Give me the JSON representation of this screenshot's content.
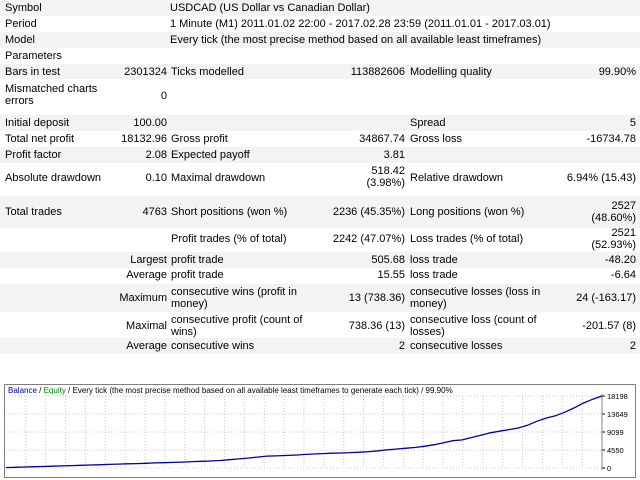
{
  "header": {
    "symbol_label": "Symbol",
    "symbol_value": "USDCAD (US Dollar vs Canadian Dollar)",
    "period_label": "Period",
    "period_value": "1 Minute (M1) 2011.01.02 22:00 - 2017.02.28 23:59 (2011.01.01 - 2017.03.01)",
    "model_label": "Model",
    "model_value": "Every tick (the most precise method based on all available least timeframes)",
    "parameters_label": "Parameters"
  },
  "stats": {
    "bars_label": "Bars in test",
    "bars_value": "2301324",
    "ticks_label": "Ticks modelled",
    "ticks_value": "113882606",
    "quality_label": "Modelling quality",
    "quality_value": "99.90%",
    "mismatch_label_1": "Mismatched charts",
    "mismatch_label_2": "errors",
    "mismatch_value": "0",
    "deposit_label": "Initial deposit",
    "deposit_value": "100.00",
    "spread_label": "Spread",
    "spread_value": "5",
    "net_label": "Total net profit",
    "net_value": "18132.96",
    "gross_profit_label": "Gross profit",
    "gross_profit_value": "34867.74",
    "gross_loss_label": "Gross loss",
    "gross_loss_value": "-16734.78",
    "pf_label": "Profit factor",
    "pf_value": "2.08",
    "payoff_label": "Expected payoff",
    "payoff_value": "3.81",
    "abs_dd_label": "Absolute drawdown",
    "abs_dd_value": "0.10",
    "max_dd_label": "Maximal drawdown",
    "max_dd_value_1": "518.42",
    "max_dd_value_2": "(3.98%)",
    "rel_dd_label": "Relative drawdown",
    "rel_dd_value": "6.94% (15.43)",
    "trades_label": "Total trades",
    "trades_value": "4763",
    "short_label": "Short positions (won %)",
    "short_value": "2236 (45.35%)",
    "long_label": "Long positions (won %)",
    "long_value_1": "2527",
    "long_value_2": "(48.60%)",
    "profit_trades_label": "Profit trades (% of total)",
    "profit_trades_value": "2242 (47.07%)",
    "loss_trades_label": "Loss trades (% of total)",
    "loss_trades_value_1": "2521",
    "loss_trades_value_2": "(52.93%)",
    "largest_label": "Largest",
    "largest_profit_label": "profit trade",
    "largest_profit_value": "505.68",
    "largest_loss_label": "loss trade",
    "largest_loss_value": "-48.20",
    "average_label": "Average",
    "average_profit_label": "profit trade",
    "average_profit_value": "15.55",
    "average_loss_label": "loss trade",
    "average_loss_value": "-6.64",
    "maximum_label": "Maximum",
    "max_wins_label_1": "consecutive wins (profit in",
    "max_wins_label_2": "money)",
    "max_wins_value": "13 (738.36)",
    "max_losses_label_1": "consecutive losses (loss in",
    "max_losses_label_2": "money)",
    "max_losses_value": "24 (-163.17)",
    "maximal_label": "Maximal",
    "maximal_profit_label_1": "consecutive profit (count of",
    "maximal_profit_label_2": "wins)",
    "maximal_profit_value": "738.36 (13)",
    "maximal_loss_label_1": "consecutive loss (count of",
    "maximal_loss_label_2": "losses)",
    "maximal_loss_value": "-201.57 (8)",
    "avg_cons_label": "Average",
    "avg_wins_label": "consecutive wins",
    "avg_wins_value": "2",
    "avg_losses_label": "consecutive losses",
    "avg_losses_value": "2"
  },
  "chart_data": {
    "type": "line",
    "legend_balance": "Balance",
    "legend_sep": " / ",
    "legend_equity": "Equity",
    "legend_rest": " / Every tick (the most precise method based on all available least timeframes to generate each tick) / 99.90%",
    "y_ticks": [
      "18198",
      "13649",
      "9099",
      "4550",
      "0"
    ],
    "ylim": [
      0,
      18198
    ],
    "colors": {
      "balance": "#0000a0",
      "equity": "#008000",
      "grid": "#c8c8c8"
    },
    "series": [
      {
        "values": [
          100,
          180,
          260,
          320,
          380,
          450,
          520,
          600,
          680,
          760,
          820,
          900,
          980,
          1050,
          1120,
          1200,
          1280,
          1350,
          1420,
          1500,
          1620,
          1700,
          1780,
          1900,
          2100,
          2300,
          2500,
          2750,
          3000,
          3050,
          3150,
          3250,
          3400,
          3550,
          3650,
          3750,
          3800,
          3900,
          4000,
          4150,
          4350,
          4600,
          4800,
          5000,
          5200,
          5500,
          5900,
          6400,
          6900,
          7100,
          7700,
          8300,
          8900,
          9300,
          9700,
          10100,
          10800,
          11800,
          12600,
          13200,
          14100,
          15200,
          16400,
          17400,
          18198
        ]
      }
    ]
  }
}
